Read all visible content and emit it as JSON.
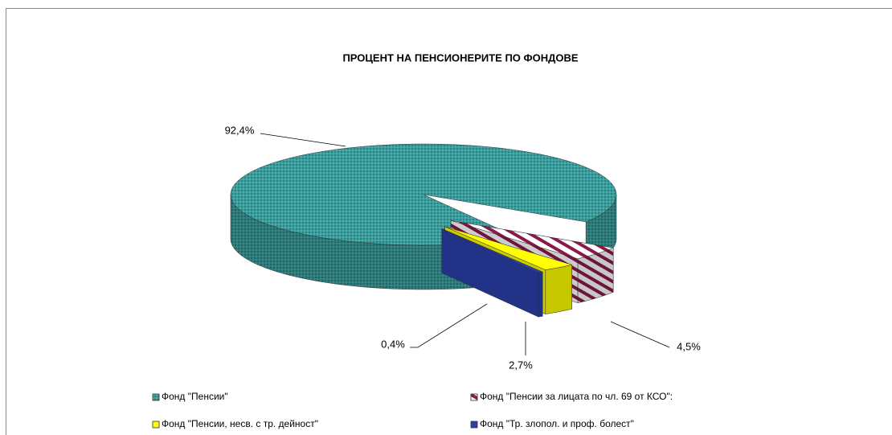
{
  "chart_data": {
    "type": "pie3d",
    "title": "ПРОЦЕНТ НА ПЕНСИОНЕРИТЕ ПО ФОНДОВЕ",
    "categories": [
      "Фонд \"Пенсии\"",
      "Фонд \"Пенсии за лицата по чл. 69 от КСО\":",
      "Фонд \"Пенсии, несв. с тр. дейност\"",
      "Фонд \"Тр. злопол. и проф. болест\""
    ],
    "values": [
      92.4,
      4.5,
      2.7,
      0.4
    ],
    "value_labels": [
      "92,4%",
      "4,5%",
      "2,7%",
      "0,4%"
    ],
    "colors": [
      "#3a9e9e",
      "#8b1a4a",
      "#ffff00",
      "#2b3fa8"
    ]
  }
}
